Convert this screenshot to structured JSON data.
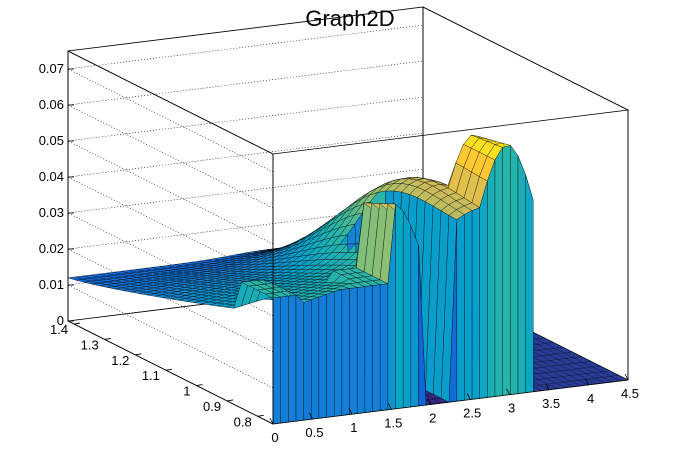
{
  "chart_data": {
    "type": "surface",
    "title": "Graph2D",
    "xlabel": "",
    "ylabel": "",
    "zlabel": "",
    "x_ticks": [
      "0",
      "0.5",
      "1",
      "1.5",
      "2",
      "2.5",
      "3",
      "3.5",
      "4",
      "4.5"
    ],
    "y_ticks": [
      "0.8",
      "0.9",
      "1",
      "1.1",
      "1.2",
      "1.3",
      "1.4"
    ],
    "z_ticks": [
      "0",
      "0.01",
      "0.02",
      "0.03",
      "0.04",
      "0.05",
      "0.06",
      "0.07"
    ],
    "xlim": [
      0,
      4.5
    ],
    "ylim": [
      0.75,
      1.42
    ],
    "zlim": [
      0,
      0.075
    ],
    "grid": true,
    "palette": [
      "#352a87",
      "#0f5cdd",
      "#1481d6",
      "#06a4ca",
      "#2eb7a4",
      "#87bf77",
      "#d1bb59",
      "#fec832",
      "#f9fb0e"
    ],
    "frame_color": "#000000",
    "floor_color": "#283c96"
  }
}
